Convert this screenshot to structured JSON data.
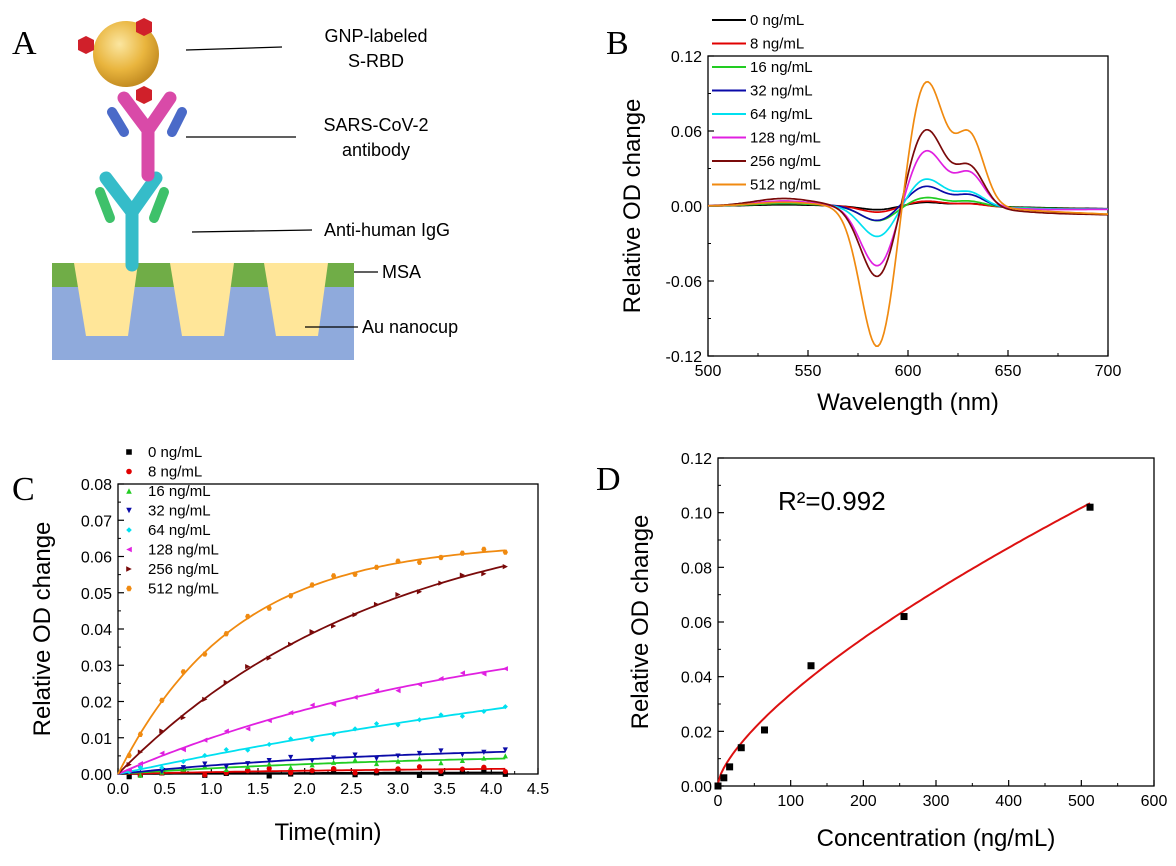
{
  "panel_a": {
    "letter": "A",
    "labels": {
      "gnp_line1": "GNP-labeled",
      "gnp_line2": "S-RBD",
      "ab_line1": "SARS-CoV-2",
      "ab_line2": "antibody",
      "anti": "Anti-human IgG",
      "msa": "MSA",
      "au": "Au nanocup"
    },
    "colors": {
      "gold": "#e9b53e",
      "red": "#d0202a",
      "magenta": "#d94aa8",
      "blue_small": "#4a6ac8",
      "cyan": "#35bcc9",
      "green_small": "#3ec16a",
      "msa": "#70ad47",
      "au_bg": "#8faadc",
      "nanocup": "#ffe699"
    }
  },
  "chart_data": [
    {
      "panel": "B",
      "type": "line",
      "xlabel": "Wavelength (nm)",
      "ylabel": "Relative OD change",
      "xlim": [
        500,
        700
      ],
      "ylim": [
        -0.12,
        0.12
      ],
      "xticks": [
        "500",
        "550",
        "600",
        "650",
        "700"
      ],
      "yticks": [
        "-0.12",
        "-0.06",
        "0.00",
        "0.06",
        "0.12"
      ],
      "legend_position": "top-left",
      "series": [
        {
          "name": "0 ng/mL",
          "color": "#000000",
          "trough": -0.003,
          "peak": 0.003,
          "shoulder": 0.002,
          "bump": 0.001
        },
        {
          "name": "8 ng/mL",
          "color": "#e00000",
          "trough": -0.005,
          "peak": 0.004,
          "shoulder": 0.002,
          "bump": 0.002
        },
        {
          "name": "16 ng/mL",
          "color": "#22cc22",
          "trough": -0.012,
          "peak": 0.007,
          "shoulder": 0.004,
          "bump": 0.002
        },
        {
          "name": "32 ng/mL",
          "color": "#0a0aa8",
          "trough": -0.012,
          "peak": 0.016,
          "shoulder": 0.009,
          "bump": 0.003
        },
        {
          "name": "64 ng/mL",
          "color": "#00e0f0",
          "trough": -0.025,
          "peak": 0.022,
          "shoulder": 0.011,
          "bump": 0.003
        },
        {
          "name": "128 ng/mL",
          "color": "#e020e0",
          "trough": -0.049,
          "peak": 0.045,
          "shoulder": 0.026,
          "bump": 0.004
        },
        {
          "name": "256 ng/mL",
          "color": "#7a0a0a",
          "trough": -0.058,
          "peak": 0.062,
          "shoulder": 0.031,
          "bump": 0.006
        },
        {
          "name": "512 ng/mL",
          "color": "#f08a10",
          "trough": -0.115,
          "peak": 0.101,
          "shoulder": 0.055,
          "bump": 0.003
        }
      ]
    },
    {
      "panel": "C",
      "type": "scatter",
      "xlabel": "Time(min)",
      "ylabel": "Relative OD change",
      "xlim": [
        0,
        4.5
      ],
      "ylim": [
        0,
        0.08
      ],
      "xticks": [
        "0.0",
        "0.5",
        "1.0",
        "1.5",
        "2.0",
        "2.5",
        "3.0",
        "3.5",
        "4.0",
        "4.5"
      ],
      "yticks": [
        "0.00",
        "0.01",
        "0.02",
        "0.03",
        "0.04",
        "0.05",
        "0.06",
        "0.07",
        "0.08"
      ],
      "legend_position": "top-left",
      "series": [
        {
          "name": "0 ng/mL",
          "color": "#000000",
          "marker": "square",
          "plateau": 0.0006,
          "k": 0.3
        },
        {
          "name": "8 ng/mL",
          "color": "#e00000",
          "marker": "circle",
          "plateau": 0.002,
          "k": 0.3
        },
        {
          "name": "16 ng/mL",
          "color": "#22cc22",
          "marker": "triangle-up",
          "plateau": 0.006,
          "k": 0.3
        },
        {
          "name": "32 ng/mL",
          "color": "#0a0aa8",
          "marker": "triangle-down",
          "plateau": 0.008,
          "k": 0.35
        },
        {
          "name": "64 ng/mL",
          "color": "#00e0f0",
          "marker": "diamond",
          "plateau": 0.05,
          "k": 0.11
        },
        {
          "name": "128 ng/mL",
          "color": "#e020e0",
          "marker": "triangle-left",
          "plateau": 0.045,
          "k": 0.25
        },
        {
          "name": "256 ng/mL",
          "color": "#7a0a0a",
          "marker": "triangle-right",
          "plateau": 0.075,
          "k": 0.35
        },
        {
          "name": "512 ng/mL",
          "color": "#f08a10",
          "marker": "hexagon",
          "plateau": 0.064,
          "k": 0.8
        }
      ]
    },
    {
      "panel": "D",
      "type": "scatter",
      "xlabel": "Concentration (ng/mL)",
      "ylabel": "Relative OD change",
      "xlim": [
        0,
        600
      ],
      "ylim": [
        0,
        0.12
      ],
      "xticks": [
        "0",
        "100",
        "200",
        "300",
        "400",
        "500",
        "600"
      ],
      "yticks": [
        "0.00",
        "0.02",
        "0.04",
        "0.06",
        "0.08",
        "0.10",
        "0.12"
      ],
      "annotation": "R²=0.992",
      "points": {
        "x": [
          0,
          8,
          16,
          32,
          64,
          128,
          256,
          512
        ],
        "y": [
          0.0,
          0.003,
          0.007,
          0.014,
          0.0205,
          0.044,
          0.062,
          0.102
        ]
      },
      "fit_color": "#dd1111",
      "point_color": "#000000"
    }
  ]
}
